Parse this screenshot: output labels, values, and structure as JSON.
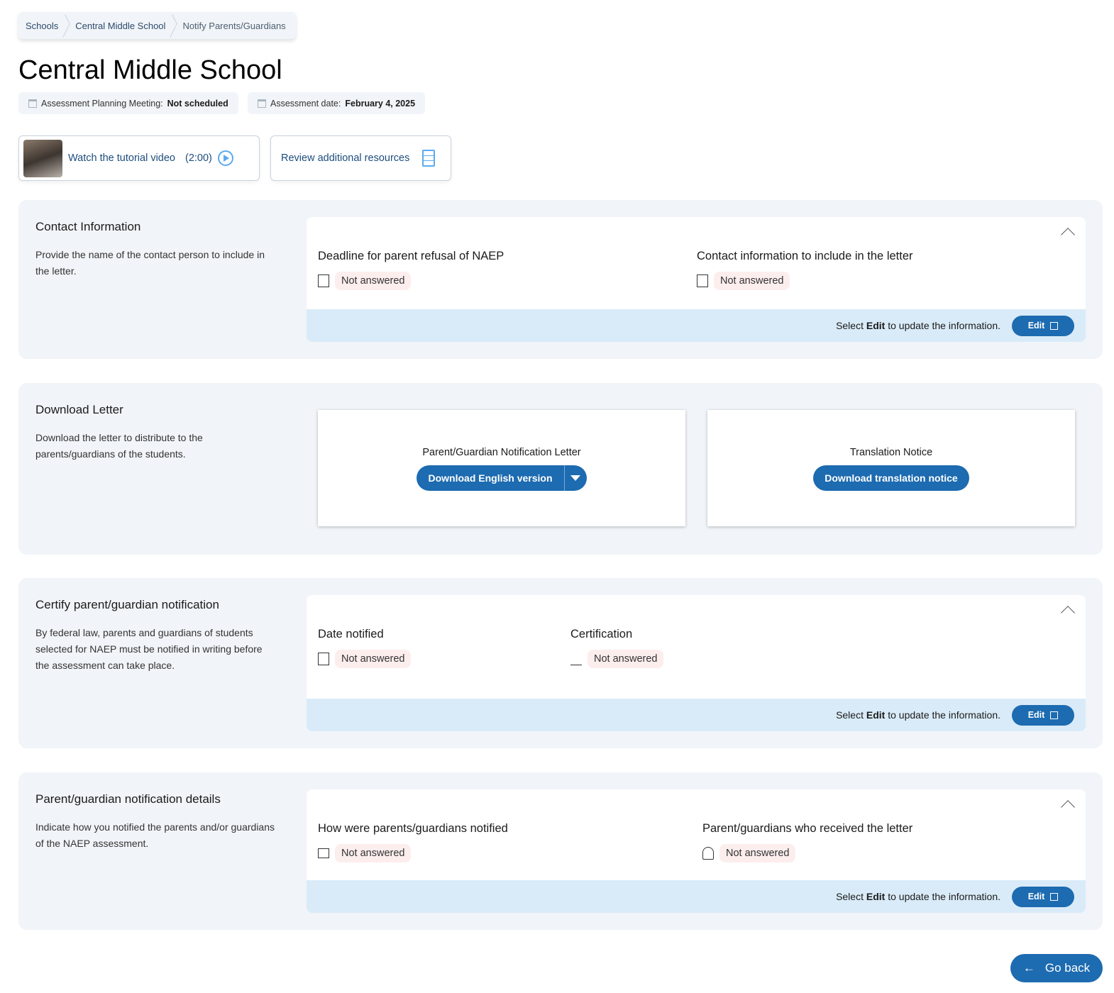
{
  "breadcrumb": [
    "Schools",
    "Central Middle School",
    "Notify Parents/Guardians"
  ],
  "title": "Central Middle School",
  "meta": [
    {
      "label": "Assessment Planning Meeting:",
      "value": "Not scheduled"
    },
    {
      "label": "Assessment date:",
      "value": "February 4, 2025"
    }
  ],
  "resources": {
    "video_label": "Watch the tutorial video",
    "video_duration": "(2:00)",
    "review_label": "Review additional resources"
  },
  "edit_hint": {
    "pre": "Select",
    "bold": "Edit",
    "post": "to update the information."
  },
  "edit_label": "Edit",
  "sections": [
    {
      "title": "Contact Information",
      "desc": "Provide the name of the contact person to include in the letter.",
      "fields": [
        {
          "label": "Deadline for parent refusal of NAEP",
          "value": "Not answered",
          "icon": "calendar-icon"
        },
        {
          "label": "Contact information to include in the letter",
          "value": "Not answered",
          "icon": "contact-card-icon"
        }
      ]
    },
    {
      "title": "Download Letter",
      "desc": "Download the letter to distribute to the parents/guardians of the students.",
      "cards": [
        {
          "title": "Parent/Guardian Notification Letter",
          "button": "Download English version"
        },
        {
          "title": "Translation Notice",
          "button": "Download translation notice"
        }
      ]
    },
    {
      "title": "Certify parent/guardian notification",
      "desc": "By federal law, parents and guardians of students selected for NAEP must be notified in writing before the assessment can take place.",
      "fields": [
        {
          "label": "Date notified",
          "value": "Not answered",
          "icon": "calendar-icon"
        },
        {
          "label": "Certification",
          "value": "Not answered",
          "icon": "signature-icon"
        }
      ]
    },
    {
      "title": "Parent/guardian notification details",
      "desc": "Indicate how you notified the parents and/or guardians of the NAEP assessment.",
      "fields": [
        {
          "label": "How were parents/guardians notified",
          "value": "Not answered",
          "icon": "mail-open-icon"
        },
        {
          "label": "Parent/guardians who received the letter",
          "value": "Not answered",
          "icon": "person-icon"
        }
      ]
    }
  ],
  "go_back": "Go back",
  "colors": {
    "primary": "#1d6bb0",
    "section_bg": "#f1f4f8",
    "bar_bg": "#d9ebf8",
    "badge_bg": "#fdeeee"
  }
}
